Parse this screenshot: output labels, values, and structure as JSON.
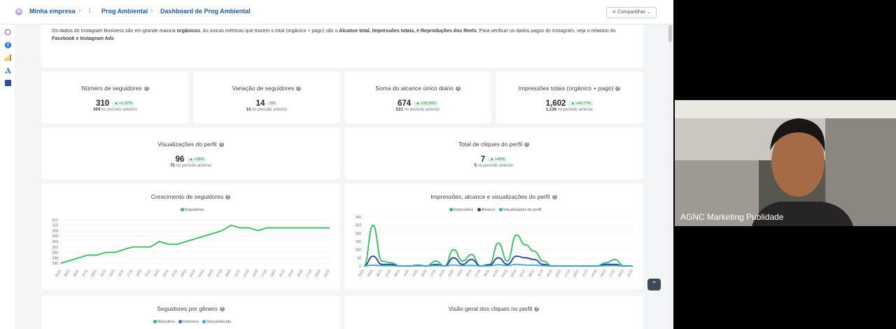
{
  "breadcrumb": {
    "workspace": "Minha empresa",
    "project": "Prog Ambiental",
    "dashboard": "Dashboard de Prog Ambiental",
    "logo_letter": "M"
  },
  "share_label": "Compartilhar",
  "sidebar_icons": [
    "instagram-icon",
    "facebook-icon",
    "analytics-icon",
    "google-ads-icon",
    "book-icon"
  ],
  "info": {
    "p1": "Os dados do Instagram Business são em grande maioria ",
    "b1": "orgânicos",
    "p2": ". As únicas métricas que trazem o total (orgânico + pago) são o ",
    "b2": "Alcance total, Impressões totais, e Reproduções dos Reels",
    "p3": ". Para verificar os dados pagos do Instagram, veja o relatório do ",
    "b3": "Facebook e Instagram Ads"
  },
  "kpis": [
    {
      "title": "Número de seguidores",
      "value": "310",
      "badge": "+1,97%",
      "trend": "up",
      "prev_value": "304",
      "prev_label": "no período anterior"
    },
    {
      "title": "Variação de seguidores",
      "value": "14",
      "badge": "0%",
      "trend": "zero",
      "prev_value": "14",
      "prev_label": "no período anterior"
    },
    {
      "title": "Soma do alcance único diário",
      "value": "674",
      "badge": "+26,93%",
      "trend": "up",
      "prev_value": "531",
      "prev_label": "no período anterior"
    },
    {
      "title": "Impressões totais (orgânico + pago)",
      "value": "1,602",
      "badge": "+40,77%",
      "trend": "up",
      "prev_value": "1,138",
      "prev_label": "no período anterior"
    },
    {
      "title": "Visualizações do perfil",
      "value": "96",
      "badge": "+28%",
      "trend": "up",
      "prev_value": "75",
      "prev_label": "no período anterior"
    },
    {
      "title": "Total de cliques do perfil",
      "value": "7",
      "badge": "+40%",
      "trend": "up",
      "prev_value": "5",
      "prev_label": "no período anterior"
    }
  ],
  "colors": {
    "green": "#2fbf5a",
    "navy": "#1f3f9a",
    "sky": "#36a9e1",
    "teal": "#17b3a3",
    "blue": "#2d6fe0"
  },
  "chart_data": [
    {
      "type": "line",
      "title": "Crescimento de seguidores",
      "x": [
        "01/11",
        "03/11",
        "05/11",
        "07/11",
        "09/11",
        "11/11",
        "13/11",
        "15/11",
        "17/11",
        "19/11",
        "21/11",
        "23/11",
        "25/11",
        "27/11",
        "29/11",
        "01/12",
        "03/12",
        "05/12",
        "07/12",
        "09/12",
        "11/12",
        "13/12",
        "15/12",
        "17/12",
        "19/12",
        "21/12",
        "23/12",
        "25/12",
        "27/12",
        "29/12",
        "31/12"
      ],
      "series": [
        {
          "name": "Seguidores",
          "color": "#2fbf5a",
          "values": [
            296,
            297,
            298,
            299,
            299,
            300,
            300,
            301,
            302,
            302,
            302,
            304,
            303,
            303,
            304,
            305,
            306,
            307,
            308,
            310,
            309,
            309,
            308,
            309,
            309,
            309,
            309,
            309,
            309,
            309,
            309
          ]
        }
      ],
      "ylim": [
        295,
        313
      ],
      "yticks": [
        296,
        298,
        300,
        302,
        304,
        306,
        308,
        310,
        312
      ],
      "grid": true,
      "legend": "top"
    },
    {
      "type": "line",
      "title": "Impressões, alcance e visualizações do perfil",
      "x": [
        "01/11",
        "03/11",
        "05/11",
        "07/11",
        "09/11",
        "11/11",
        "13/11",
        "15/11",
        "17/11",
        "19/11",
        "21/11",
        "23/11",
        "25/11",
        "27/11",
        "29/11",
        "01/12",
        "03/12",
        "05/12",
        "07/12",
        "09/12",
        "11/12",
        "13/12",
        "15/12",
        "17/12",
        "19/12",
        "21/12",
        "23/12",
        "25/12",
        "27/12",
        "29/12",
        "31/12"
      ],
      "series": [
        {
          "name": "Impressões",
          "color": "#2fbf5a",
          "values": [
            0,
            250,
            30,
            20,
            0,
            0,
            5,
            0,
            30,
            0,
            100,
            30,
            70,
            0,
            10,
            140,
            30,
            190,
            130,
            90,
            30,
            0,
            0,
            0,
            0,
            0,
            0,
            20,
            40,
            0,
            0
          ]
        },
        {
          "name": "Alcance",
          "color": "#1f3f9a",
          "values": [
            0,
            60,
            10,
            10,
            0,
            0,
            3,
            0,
            10,
            0,
            50,
            10,
            40,
            0,
            5,
            50,
            10,
            60,
            50,
            40,
            10,
            0,
            0,
            0,
            0,
            0,
            0,
            10,
            10,
            0,
            0
          ]
        },
        {
          "name": "Visualizações do perfil",
          "color": "#36a9e1",
          "values": [
            0,
            5,
            2,
            2,
            0,
            0,
            1,
            0,
            3,
            0,
            6,
            2,
            4,
            0,
            1,
            8,
            3,
            10,
            6,
            5,
            2,
            0,
            0,
            0,
            0,
            0,
            0,
            2,
            3,
            0,
            0
          ]
        }
      ],
      "ylim": [
        0,
        300
      ],
      "yticks": [
        0,
        50,
        100,
        150,
        200,
        250,
        300
      ],
      "grid": true,
      "legend": "top"
    },
    {
      "type": "bar",
      "title": "Seguidores por gênero",
      "series": [
        {
          "name": "Masculino",
          "color": "#17b3a3"
        },
        {
          "name": "Feminino",
          "color": "#2d6fe0"
        },
        {
          "name": "Desconhecido",
          "color": "#36a9e1"
        }
      ],
      "legend": "top"
    },
    {
      "type": "line",
      "title": "Visão geral dos cliques no perfil"
    }
  ],
  "webcam": {
    "name": "AGNC Marketing Publidade"
  }
}
